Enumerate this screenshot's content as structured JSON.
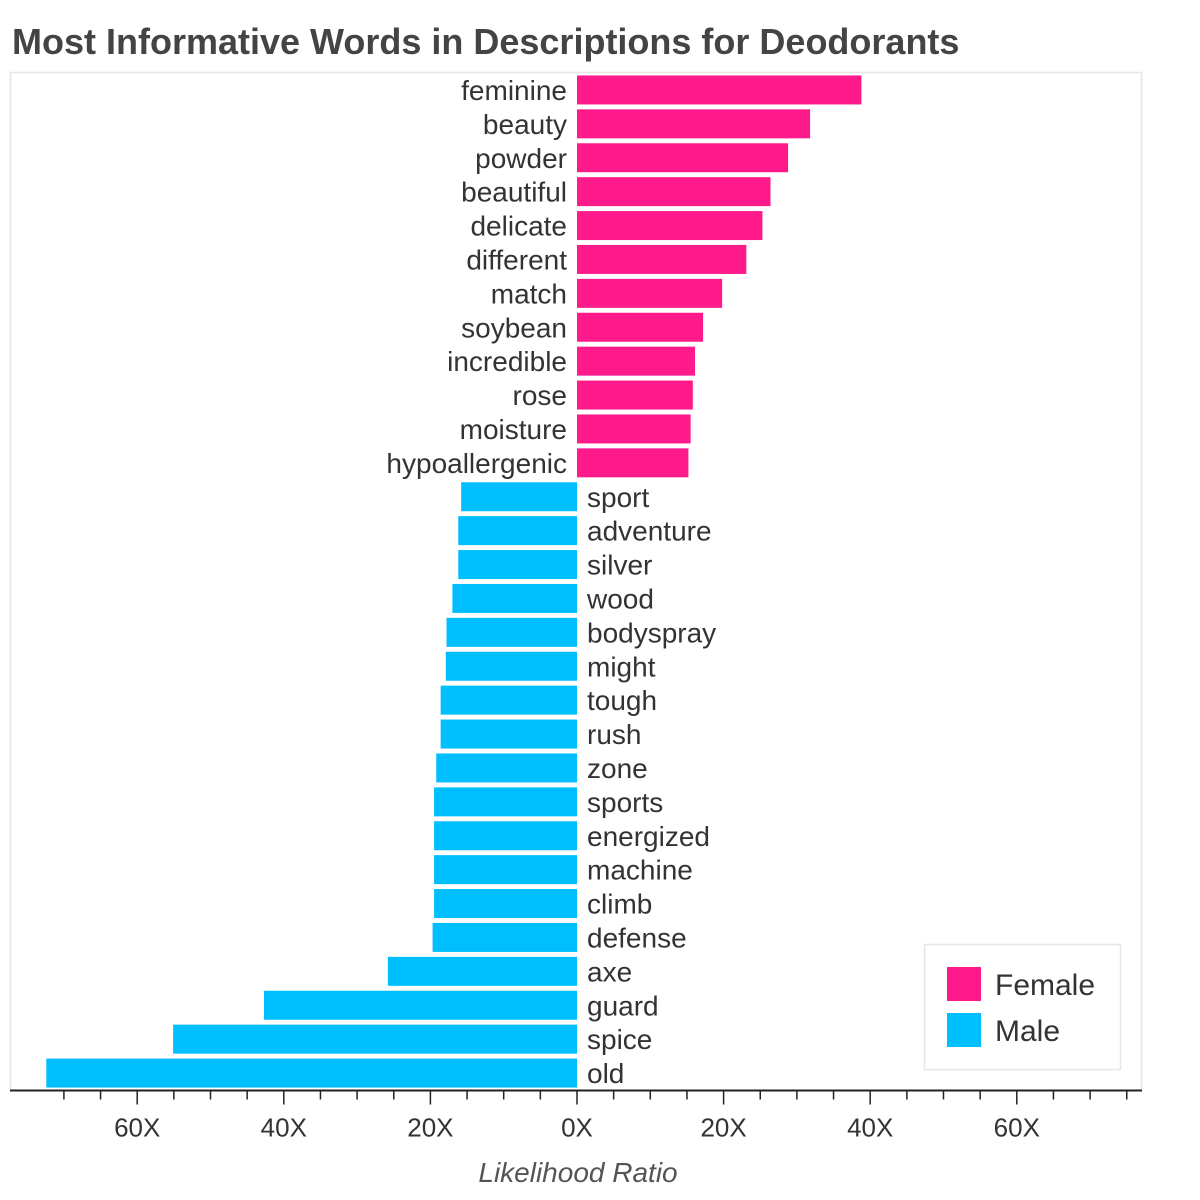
{
  "chart_data": {
    "type": "bar",
    "orientation": "horizontal-diverging",
    "title": "Most Informative Words in Descriptions for Deodorants",
    "xlabel": "Likelihood Ratio",
    "xlim": [
      -75,
      75
    ],
    "x_ticks": [
      {
        "value": -60,
        "label": "60X"
      },
      {
        "value": -40,
        "label": "40X"
      },
      {
        "value": -20,
        "label": "20X"
      },
      {
        "value": 0,
        "label": "0X"
      },
      {
        "value": 20,
        "label": "20X"
      },
      {
        "value": 40,
        "label": "40X"
      },
      {
        "value": 60,
        "label": "60X"
      }
    ],
    "legend": {
      "position": "bottom-right",
      "items": [
        {
          "name": "Female",
          "color": "#ff1a8c"
        },
        {
          "name": "Male",
          "color": "#00bfff"
        }
      ]
    },
    "series": [
      {
        "name": "Female",
        "color": "#ff1a8c",
        "words": [
          "feminine",
          "beauty",
          "powder",
          "beautiful",
          "delicate",
          "different",
          "match",
          "soybean",
          "incredible",
          "rose",
          "moisture",
          "hypoallergenic"
        ],
        "values": [
          38.8,
          31.8,
          28.8,
          26.4,
          25.3,
          23.1,
          19.8,
          17.2,
          16.1,
          15.8,
          15.5,
          15.2
        ]
      },
      {
        "name": "Male",
        "color": "#00bfff",
        "words": [
          "sport",
          "adventure",
          "silver",
          "wood",
          "bodyspray",
          "might",
          "tough",
          "rush",
          "zone",
          "sports",
          "energized",
          "machine",
          "climb",
          "defense",
          "axe",
          "guard",
          "spice",
          "old"
        ],
        "values": [
          15.8,
          16.2,
          16.2,
          17.0,
          17.8,
          17.9,
          18.6,
          18.6,
          19.2,
          19.5,
          19.5,
          19.5,
          19.5,
          19.7,
          25.8,
          42.7,
          55.1,
          72.4
        ]
      }
    ]
  }
}
